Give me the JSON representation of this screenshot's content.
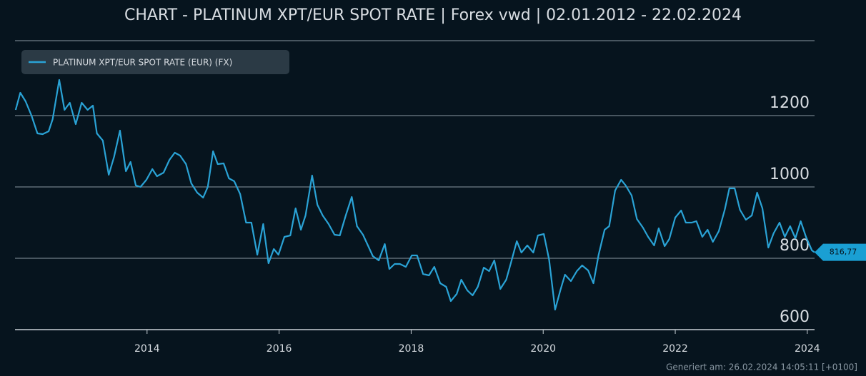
{
  "chart_data": {
    "type": "line",
    "title": "CHART - PLATINUM XPT/EUR SPOT RATE | Forex vwd | 02.01.2012 - 22.02.2024",
    "footnote": "Generiert am: 26.02.2024 14:05:11 [+0100]",
    "legend": "top-left",
    "grid": true,
    "xlim": [
      2012,
      2024.11
    ],
    "xticks": [
      2014,
      2016,
      2018,
      2020,
      2022,
      2024
    ],
    "ylim": [
      600,
      1410
    ],
    "yticks": [
      600,
      800,
      1000,
      1200
    ],
    "x": [
      2012.01,
      2012.08,
      2012.16,
      2012.25,
      2012.34,
      2012.42,
      2012.51,
      2012.57,
      2012.67,
      2012.75,
      2012.83,
      2012.92,
      2013.01,
      2013.1,
      2013.18,
      2013.24,
      2013.33,
      2013.42,
      2013.5,
      2013.59,
      2013.68,
      2013.75,
      2013.83,
      2013.9,
      2013.99,
      2014.08,
      2014.15,
      2014.25,
      2014.34,
      2014.42,
      2014.5,
      2014.59,
      2014.67,
      2014.76,
      2014.85,
      2014.92,
      2015.0,
      2015.07,
      2015.16,
      2015.24,
      2015.32,
      2015.41,
      2015.5,
      2015.58,
      2015.67,
      2015.76,
      2015.84,
      2015.92,
      2015.99,
      2016.08,
      2016.17,
      2016.25,
      2016.33,
      2016.4,
      2016.5,
      2016.58,
      2016.66,
      2016.75,
      2016.84,
      2016.92,
      2017.01,
      2017.1,
      2017.18,
      2017.27,
      2017.35,
      2017.42,
      2017.51,
      2017.6,
      2017.67,
      2017.75,
      2017.83,
      2017.92,
      2018.01,
      2018.09,
      2018.18,
      2018.27,
      2018.35,
      2018.44,
      2018.53,
      2018.6,
      2018.69,
      2018.76,
      2018.85,
      2018.93,
      2019.01,
      2019.1,
      2019.18,
      2019.26,
      2019.35,
      2019.44,
      2019.51,
      2019.6,
      2019.67,
      2019.76,
      2019.85,
      2019.92,
      2020.01,
      2020.09,
      2020.18,
      2020.26,
      2020.33,
      2020.42,
      2020.51,
      2020.59,
      2020.68,
      2020.76,
      2020.84,
      2020.93,
      2021.0,
      2021.09,
      2021.18,
      2021.25,
      2021.34,
      2021.42,
      2021.51,
      2021.59,
      2021.68,
      2021.75,
      2021.84,
      2021.91,
      2022.0,
      2022.09,
      2022.16,
      2022.25,
      2022.32,
      2022.41,
      2022.49,
      2022.57,
      2022.66,
      2022.75,
      2022.82,
      2022.9,
      2022.98,
      2023.07,
      2023.16,
      2023.24,
      2023.32,
      2023.41,
      2023.49,
      2023.58,
      2023.66,
      2023.74,
      2023.82,
      2023.9,
      2023.98,
      2024.07,
      2024.11
    ],
    "series": [
      {
        "name": "PLATINUM XPT/EUR SPOT RATE (EUR) (FX)",
        "color": "#2aa3d6",
        "values": [
          1216,
          1264,
          1240,
          1200,
          1150,
          1148,
          1156,
          1190,
          1300,
          1216,
          1236,
          1176,
          1236,
          1216,
          1228,
          1150,
          1130,
          1034,
          1084,
          1158,
          1044,
          1070,
          1004,
          1000,
          1020,
          1050,
          1030,
          1040,
          1076,
          1096,
          1088,
          1064,
          1010,
          984,
          970,
          1000,
          1100,
          1064,
          1066,
          1024,
          1016,
          980,
          900,
          900,
          810,
          896,
          786,
          826,
          810,
          860,
          864,
          940,
          880,
          920,
          1032,
          950,
          920,
          896,
          866,
          864,
          920,
          972,
          890,
          866,
          834,
          806,
          794,
          840,
          770,
          784,
          784,
          776,
          808,
          808,
          756,
          752,
          776,
          730,
          720,
          680,
          700,
          740,
          710,
          696,
          720,
          774,
          764,
          794,
          714,
          740,
          786,
          848,
          816,
          836,
          816,
          864,
          868,
          796,
          656,
          710,
          754,
          736,
          764,
          780,
          766,
          730,
          810,
          880,
          890,
          990,
          1020,
          1004,
          976,
          910,
          886,
          860,
          836,
          884,
          834,
          854,
          914,
          934,
          900,
          900,
          904,
          860,
          880,
          846,
          876,
          936,
          996,
          996,
          936,
          908,
          920,
          984,
          940,
          830,
          870,
          900,
          860,
          890,
          856,
          904,
          860,
          822,
          816.77
        ]
      }
    ],
    "annotations": [
      {
        "value": 816.77,
        "label": "816,77"
      }
    ]
  }
}
